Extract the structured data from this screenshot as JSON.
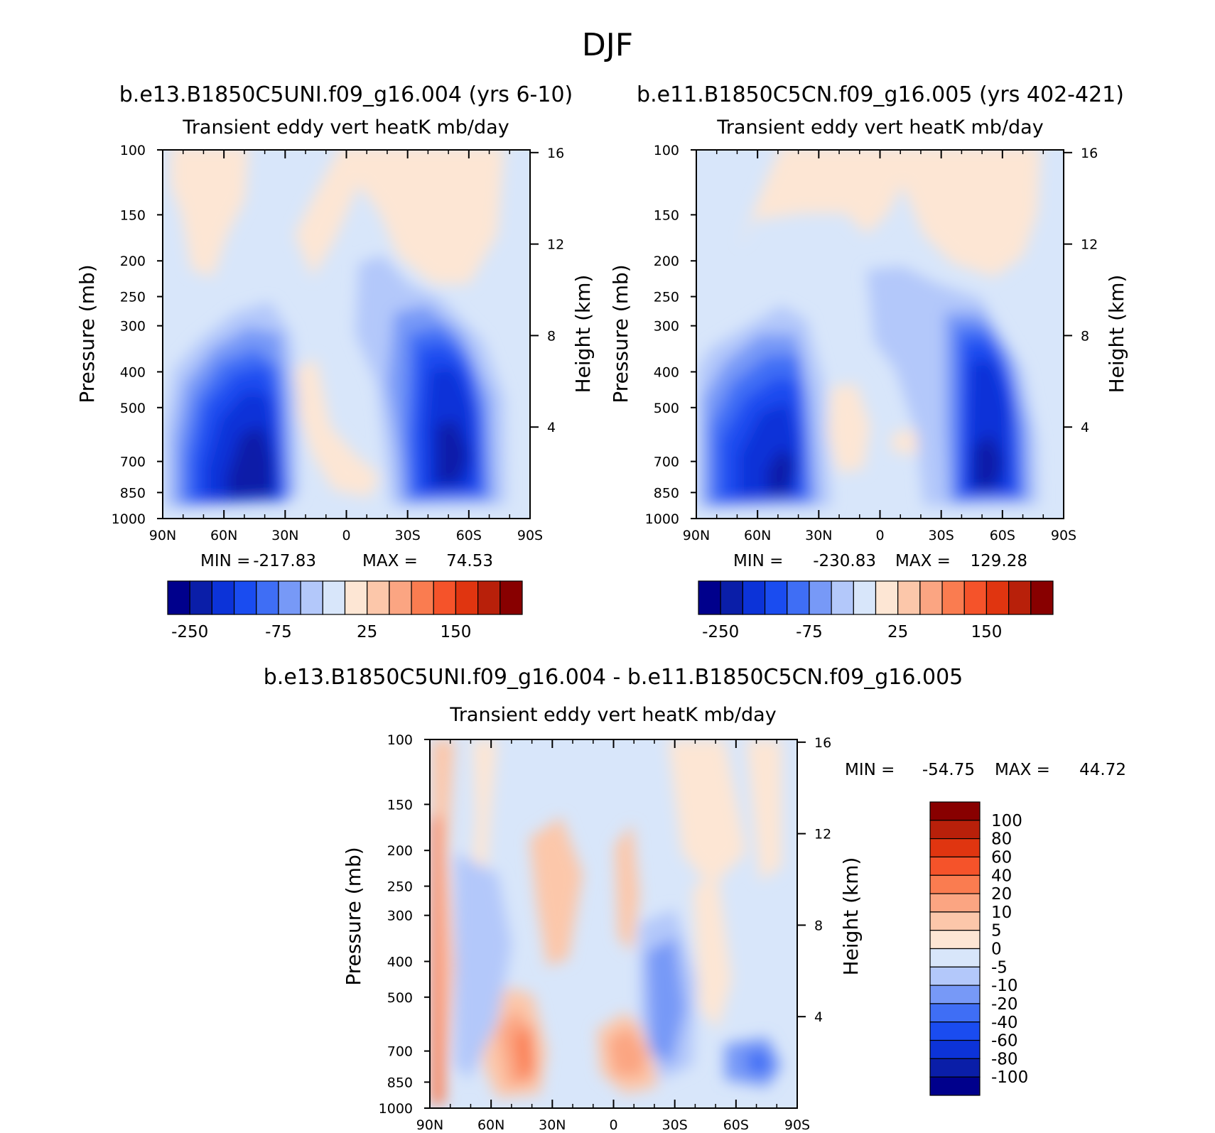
{
  "figure": {
    "title": "DJF"
  },
  "panels": [
    {
      "case_title": "b.e13.B1850C5UNI.f09_g16.004 (yrs 6-10)",
      "plot_title": "Transient eddy vert heatK mb/day",
      "ylabel": "Pressure (mb)",
      "ylabel_right": "Height (km)",
      "stats": {
        "min_label": "MIN =",
        "min": "-217.83",
        "max_label": "MAX =",
        "max": "74.53"
      },
      "colorbar": {
        "labels": [
          "-250",
          "-75",
          "25",
          "150"
        ]
      }
    },
    {
      "case_title": "b.e11.B1850C5CN.f09_g16.005 (yrs 402-421)",
      "plot_title": "Transient eddy vert heatK mb/day",
      "ylabel": "Pressure (mb)",
      "ylabel_right": "Height (km)",
      "stats": {
        "min_label": "MIN =",
        "min": "-230.83",
        "max_label": "MAX =",
        "max": "129.28"
      },
      "colorbar": {
        "labels": [
          "-250",
          "-75",
          "25",
          "150"
        ]
      }
    },
    {
      "case_title": "b.e13.B1850C5UNI.f09_g16.004 - b.e11.B1850C5CN.f09_g16.005",
      "plot_title": "Transient eddy vert heatK mb/day",
      "ylabel": "Pressure (mb)",
      "ylabel_right": "Height (km)",
      "stats": {
        "min_label": "MIN =",
        "min": "-54.75",
        "max_label": "MAX =",
        "max": "44.72"
      },
      "colorbar": {
        "labels": [
          "100",
          "80",
          "60",
          "40",
          "20",
          "10",
          "5",
          "0",
          "-5",
          "-10",
          "-20",
          "-40",
          "-60",
          "-80",
          "-100"
        ]
      }
    }
  ],
  "colors": {
    "scale": [
      "#00008c",
      "#0a1ea8",
      "#0c33d8",
      "#1a4cf0",
      "#3f6ef5",
      "#7799f7",
      "#b3c8fa",
      "#d8e6fa",
      "#fde6d4",
      "#fcc7aa",
      "#fba582",
      "#fa7c50",
      "#f5532a",
      "#e03510",
      "#b8200a",
      "#880000"
    ],
    "diff_scale": [
      "#00008c",
      "#0a1ea8",
      "#0c33d8",
      "#1a4cf0",
      "#3f6ef5",
      "#7799f7",
      "#b3c8fa",
      "#d8e6fa",
      "#fde6d4",
      "#fcc7aa",
      "#fba582",
      "#fa7c50",
      "#f5532a",
      "#e03510",
      "#b8200a",
      "#880000"
    ]
  },
  "chart_data": [
    {
      "type": "heatmap",
      "title": "Transient eddy vert heatK mb/day",
      "x_ticks": [
        "90N",
        "60N",
        "30N",
        "0",
        "30S",
        "60S",
        "90S"
      ],
      "xlim": [
        90,
        -90
      ],
      "y_ticks": [
        100,
        150,
        200,
        250,
        300,
        400,
        500,
        700,
        850,
        1000
      ],
      "ylim": [
        1000,
        100
      ],
      "y_scale": "log",
      "y_right_ticks": [
        16,
        12,
        8,
        4
      ],
      "ylabel": "Pressure (mb)",
      "ylabel_right": "Height (km)",
      "min": -217.83,
      "max": 74.53,
      "colorbar_labels": [
        -250,
        -75,
        25,
        150
      ],
      "features": [
        {
          "lat": 45,
          "p": 650,
          "value": -200,
          "desc": "NH midlatitude minimum"
        },
        {
          "lat": -45,
          "p": 750,
          "value": -190,
          "desc": "SH midlatitude minimum"
        },
        {
          "lat": 5,
          "p": 600,
          "value": 5,
          "desc": "tropical weak positive"
        }
      ]
    },
    {
      "type": "heatmap",
      "title": "Transient eddy vert heatK mb/day",
      "x_ticks": [
        "90N",
        "60N",
        "30N",
        "0",
        "30S",
        "60S",
        "90S"
      ],
      "xlim": [
        90,
        -90
      ],
      "y_ticks": [
        100,
        150,
        200,
        250,
        300,
        400,
        500,
        700,
        850,
        1000
      ],
      "ylim": [
        1000,
        100
      ],
      "y_scale": "log",
      "y_right_ticks": [
        16,
        12,
        8,
        4
      ],
      "ylabel": "Pressure (mb)",
      "ylabel_right": "Height (km)",
      "min": -230.83,
      "max": 129.28,
      "colorbar_labels": [
        -250,
        -75,
        25,
        150
      ],
      "features": [
        {
          "lat": 45,
          "p": 700,
          "value": -220,
          "desc": "NH midlatitude minimum"
        },
        {
          "lat": -45,
          "p": 750,
          "value": -200,
          "desc": "SH midlatitude minimum"
        },
        {
          "lat": 10,
          "p": 600,
          "value": 5,
          "desc": "tropical weak positive"
        }
      ]
    },
    {
      "type": "heatmap",
      "title": "Transient eddy vert heatK mb/day",
      "x_ticks": [
        "90N",
        "60N",
        "30N",
        "0",
        "30S",
        "60S",
        "90S"
      ],
      "xlim": [
        90,
        -90
      ],
      "y_ticks": [
        100,
        150,
        200,
        250,
        300,
        400,
        500,
        700,
        850,
        1000
      ],
      "ylim": [
        1000,
        100
      ],
      "y_scale": "log",
      "y_right_ticks": [
        16,
        12,
        8,
        4
      ],
      "ylabel": "Pressure (mb)",
      "ylabel_right": "Height (km)",
      "min": -54.75,
      "max": 44.72,
      "colorbar_labels": [
        100,
        80,
        60,
        40,
        20,
        10,
        5,
        0,
        -5,
        -10,
        -20,
        -40,
        -60,
        -80,
        -100
      ],
      "features": [
        {
          "lat": 50,
          "p": 750,
          "value": 35,
          "desc": "NH positive difference"
        },
        {
          "lat": 0,
          "p": 750,
          "value": 30,
          "desc": "equatorial positive difference"
        },
        {
          "lat": -30,
          "p": 600,
          "value": -30,
          "desc": "SH subtropical negative difference"
        },
        {
          "lat": -60,
          "p": 800,
          "value": -45,
          "desc": "SH high-latitude negative difference"
        }
      ]
    }
  ]
}
